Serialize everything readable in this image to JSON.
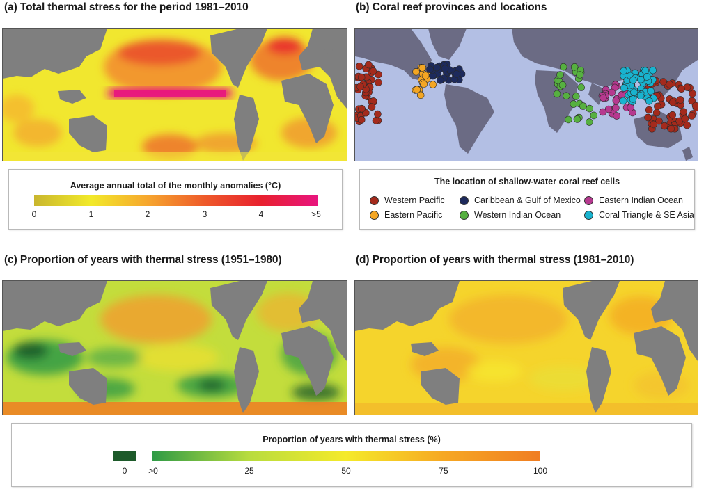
{
  "panels": {
    "a": {
      "title": "(a)  Total thermal stress for the period 1981–2010"
    },
    "b": {
      "title": "(b)  Coral reef provinces and locations"
    },
    "c": {
      "title": "(c)  Proportion of years with thermal stress (1951–1980)"
    },
    "d": {
      "title": "(d)  Proportion of years with thermal stress (1981–2010)"
    }
  },
  "legend_a": {
    "title": "Average annual total of the monthly anomalies (°C)",
    "ticks": [
      "0",
      "1",
      "2",
      "3",
      "4",
      ">5"
    ],
    "colors": [
      "#c9b62e",
      "#f2ea2a",
      "#f6a62e",
      "#ee5a2a",
      "#e8202e",
      "#e8157f"
    ]
  },
  "legend_b": {
    "title": "The location of shallow-water coral reef cells",
    "items": [
      {
        "label": "Western Pacific",
        "color": "#a42a1c"
      },
      {
        "label": "Eastern Pacific",
        "color": "#f4a623"
      },
      {
        "label": "Caribbean & Gulf of Mexico",
        "color": "#1d2a5c"
      },
      {
        "label": "Western Indian Ocean",
        "color": "#56b040"
      },
      {
        "label": "Eastern Indian Ocean",
        "color": "#b6398f"
      },
      {
        "label": "Coral Triangle & SE Asia",
        "color": "#19b3cf"
      }
    ]
  },
  "legend_cd": {
    "title": "Proportion of years with thermal stress (%)",
    "zero_label": "0",
    "ticks": [
      ">0",
      "25",
      "50",
      "75",
      "100"
    ],
    "zero_color": "#1d5a2a",
    "colors": [
      "#2e9a46",
      "#b8dc3e",
      "#f5ea2a",
      "#f6a823",
      "#f07d22"
    ]
  },
  "colors": {
    "land": "#7f7f7f",
    "ocean_b": "#b3bfe4",
    "land_b": "#6b6b84"
  }
}
